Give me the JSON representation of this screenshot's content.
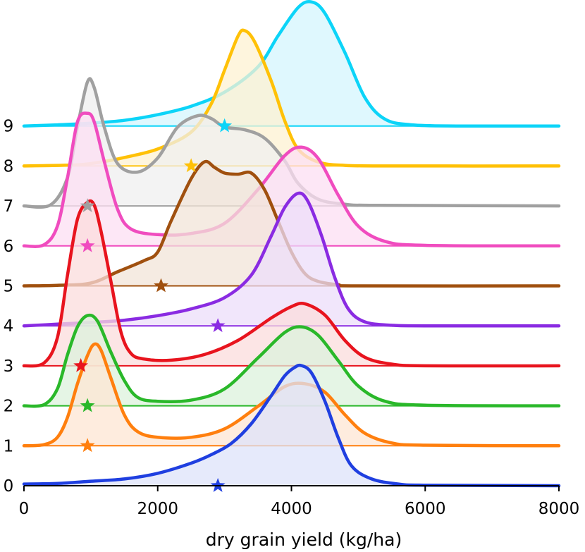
{
  "chart_data": {
    "type": "ridgeline",
    "title": "",
    "xlabel": "dry grain yield (kg/ha)",
    "ylabel": "",
    "xlim": [
      0,
      8000
    ],
    "xticks": [
      0,
      2000,
      4000,
      6000,
      8000
    ],
    "xtick_labels": [
      "0",
      "2000",
      "4000",
      "6000",
      "8000"
    ],
    "grid": false,
    "marker": "star",
    "series": [
      {
        "name": "0",
        "color": "#1f3fe0",
        "fill": "#dde3fa",
        "star": 2900,
        "points": [
          [
            0,
            0.03
          ],
          [
            500,
            0.04
          ],
          [
            1000,
            0.08
          ],
          [
            1500,
            0.12
          ],
          [
            2000,
            0.22
          ],
          [
            2500,
            0.4
          ],
          [
            2800,
            0.55
          ],
          [
            3100,
            0.75
          ],
          [
            3400,
            1.1
          ],
          [
            3700,
            1.6
          ],
          [
            3900,
            1.95
          ],
          [
            4050,
            2.1
          ],
          [
            4150,
            2.13
          ],
          [
            4300,
            2.0
          ],
          [
            4500,
            1.5
          ],
          [
            4700,
            0.85
          ],
          [
            4900,
            0.35
          ],
          [
            5200,
            0.12
          ],
          [
            5600,
            0.03
          ],
          [
            6000,
            0.01
          ],
          [
            8000,
            0
          ]
        ]
      },
      {
        "name": "1",
        "color": "#ff7f0e",
        "fill": "#fde6d3",
        "star": 950,
        "points": [
          [
            0,
            0
          ],
          [
            300,
            0.02
          ],
          [
            500,
            0.15
          ],
          [
            650,
            0.5
          ],
          [
            800,
            1.1
          ],
          [
            950,
            1.6
          ],
          [
            1050,
            1.8
          ],
          [
            1150,
            1.7
          ],
          [
            1300,
            1.2
          ],
          [
            1500,
            0.55
          ],
          [
            1700,
            0.25
          ],
          [
            2000,
            0.15
          ],
          [
            2500,
            0.15
          ],
          [
            3000,
            0.3
          ],
          [
            3500,
            0.7
          ],
          [
            3900,
            1.05
          ],
          [
            4200,
            1.1
          ],
          [
            4500,
            0.95
          ],
          [
            4800,
            0.55
          ],
          [
            5100,
            0.22
          ],
          [
            5500,
            0.05
          ],
          [
            6000,
            0.01
          ],
          [
            8000,
            0
          ]
        ]
      },
      {
        "name": "2",
        "color": "#2ab82a",
        "fill": "#dcf2dc",
        "star": 950,
        "points": [
          [
            0,
            0
          ],
          [
            300,
            0.02
          ],
          [
            500,
            0.3
          ],
          [
            650,
            0.9
          ],
          [
            800,
            1.4
          ],
          [
            950,
            1.6
          ],
          [
            1100,
            1.5
          ],
          [
            1300,
            0.95
          ],
          [
            1500,
            0.45
          ],
          [
            1700,
            0.15
          ],
          [
            2000,
            0.08
          ],
          [
            2500,
            0.1
          ],
          [
            3000,
            0.3
          ],
          [
            3500,
            0.85
          ],
          [
            3900,
            1.3
          ],
          [
            4150,
            1.4
          ],
          [
            4400,
            1.25
          ],
          [
            4700,
            0.8
          ],
          [
            5000,
            0.35
          ],
          [
            5400,
            0.08
          ],
          [
            6000,
            0.01
          ],
          [
            8000,
            0
          ]
        ]
      },
      {
        "name": "3",
        "color": "#e8141e",
        "fill": "#fbdcdc",
        "star": 850,
        "points": [
          [
            0,
            0
          ],
          [
            300,
            0.05
          ],
          [
            500,
            0.5
          ],
          [
            650,
            1.6
          ],
          [
            800,
            2.6
          ],
          [
            950,
            2.9
          ],
          [
            1050,
            2.85
          ],
          [
            1150,
            2.4
          ],
          [
            1300,
            1.5
          ],
          [
            1450,
            0.6
          ],
          [
            1600,
            0.22
          ],
          [
            1800,
            0.12
          ],
          [
            2200,
            0.1
          ],
          [
            2700,
            0.2
          ],
          [
            3200,
            0.45
          ],
          [
            3700,
            0.85
          ],
          [
            4000,
            1.05
          ],
          [
            4200,
            1.1
          ],
          [
            4500,
            0.9
          ],
          [
            4800,
            0.45
          ],
          [
            5100,
            0.15
          ],
          [
            5500,
            0.03
          ],
          [
            6000,
            0
          ],
          [
            8000,
            0
          ]
        ]
      },
      {
        "name": "4",
        "color": "#8a2be2",
        "fill": "#ecdef9",
        "star": 2900,
        "points": [
          [
            0,
            0
          ],
          [
            500,
            0.03
          ],
          [
            1000,
            0.06
          ],
          [
            1500,
            0.1
          ],
          [
            2000,
            0.18
          ],
          [
            2500,
            0.3
          ],
          [
            3000,
            0.5
          ],
          [
            3400,
            0.9
          ],
          [
            3700,
            1.6
          ],
          [
            3900,
            2.1
          ],
          [
            4100,
            2.35
          ],
          [
            4250,
            2.2
          ],
          [
            4450,
            1.6
          ],
          [
            4650,
            0.85
          ],
          [
            4850,
            0.3
          ],
          [
            5100,
            0.07
          ],
          [
            5500,
            0.01
          ],
          [
            6000,
            0
          ],
          [
            8000,
            0
          ]
        ]
      },
      {
        "name": "5",
        "color": "#a0500f",
        "fill": "#f2e4d8",
        "star": 2050,
        "points": [
          [
            0,
            0
          ],
          [
            500,
            0.01
          ],
          [
            1000,
            0.05
          ],
          [
            1400,
            0.25
          ],
          [
            1800,
            0.45
          ],
          [
            2000,
            0.6
          ],
          [
            2200,
            1.15
          ],
          [
            2500,
            1.9
          ],
          [
            2700,
            2.2
          ],
          [
            2850,
            2.1
          ],
          [
            3000,
            2.0
          ],
          [
            3200,
            1.98
          ],
          [
            3400,
            2.0
          ],
          [
            3600,
            1.7
          ],
          [
            3800,
            1.15
          ],
          [
            4000,
            0.6
          ],
          [
            4200,
            0.22
          ],
          [
            4400,
            0.08
          ],
          [
            4700,
            0.02
          ],
          [
            5000,
            0
          ],
          [
            8000,
            0
          ]
        ]
      },
      {
        "name": "6",
        "color": "#f04cbf",
        "fill": "#fcdff3",
        "star": 950,
        "points": [
          [
            0,
            0
          ],
          [
            300,
            0.02
          ],
          [
            500,
            0.35
          ],
          [
            650,
            1.2
          ],
          [
            800,
            2.2
          ],
          [
            950,
            2.35
          ],
          [
            1050,
            2.2
          ],
          [
            1200,
            1.5
          ],
          [
            1400,
            0.65
          ],
          [
            1600,
            0.3
          ],
          [
            2000,
            0.2
          ],
          [
            2500,
            0.22
          ],
          [
            3000,
            0.4
          ],
          [
            3500,
            1.0
          ],
          [
            3900,
            1.6
          ],
          [
            4150,
            1.75
          ],
          [
            4400,
            1.55
          ],
          [
            4700,
            0.9
          ],
          [
            5000,
            0.35
          ],
          [
            5400,
            0.08
          ],
          [
            6000,
            0.01
          ],
          [
            8000,
            0
          ]
        ]
      },
      {
        "name": "7",
        "color": "#a0a0a0",
        "fill": "#efefef",
        "star": 950,
        "points": [
          [
            0,
            0
          ],
          [
            400,
            0.02
          ],
          [
            650,
            0.5
          ],
          [
            800,
            1.4
          ],
          [
            950,
            2.2
          ],
          [
            1050,
            2.1
          ],
          [
            1200,
            1.4
          ],
          [
            1400,
            0.75
          ],
          [
            1700,
            0.6
          ],
          [
            2000,
            0.85
          ],
          [
            2300,
            1.4
          ],
          [
            2600,
            1.6
          ],
          [
            2800,
            1.55
          ],
          [
            3000,
            1.4
          ],
          [
            3300,
            1.35
          ],
          [
            3600,
            1.2
          ],
          [
            3900,
            0.8
          ],
          [
            4100,
            0.4
          ],
          [
            4400,
            0.12
          ],
          [
            4800,
            0.03
          ],
          [
            5300,
            0.01
          ],
          [
            8000,
            0
          ]
        ]
      },
      {
        "name": "8",
        "color": "#ffc107",
        "fill": "#fef2d1",
        "star": 2500,
        "points": [
          [
            0,
            0
          ],
          [
            800,
            0.02
          ],
          [
            1200,
            0.08
          ],
          [
            1500,
            0.15
          ],
          [
            2000,
            0.3
          ],
          [
            2500,
            0.6
          ],
          [
            2800,
            1.1
          ],
          [
            3000,
            1.7
          ],
          [
            3200,
            2.3
          ],
          [
            3300,
            2.4
          ],
          [
            3450,
            2.2
          ],
          [
            3700,
            1.5
          ],
          [
            3900,
            0.8
          ],
          [
            4100,
            0.3
          ],
          [
            4400,
            0.07
          ],
          [
            4800,
            0.01
          ],
          [
            5500,
            0
          ],
          [
            8000,
            0
          ]
        ]
      },
      {
        "name": "9",
        "color": "#0cd4f8",
        "fill": "#d4f5fd",
        "star": 3000,
        "points": [
          [
            0,
            0
          ],
          [
            500,
            0.02
          ],
          [
            1000,
            0.05
          ],
          [
            1500,
            0.1
          ],
          [
            2000,
            0.2
          ],
          [
            2500,
            0.35
          ],
          [
            3000,
            0.6
          ],
          [
            3500,
            1.05
          ],
          [
            3800,
            1.6
          ],
          [
            4100,
            2.1
          ],
          [
            4300,
            2.2
          ],
          [
            4500,
            2.0
          ],
          [
            4800,
            1.3
          ],
          [
            5100,
            0.5
          ],
          [
            5400,
            0.12
          ],
          [
            5800,
            0.02
          ],
          [
            6500,
            0
          ],
          [
            8000,
            0
          ]
        ]
      }
    ]
  }
}
